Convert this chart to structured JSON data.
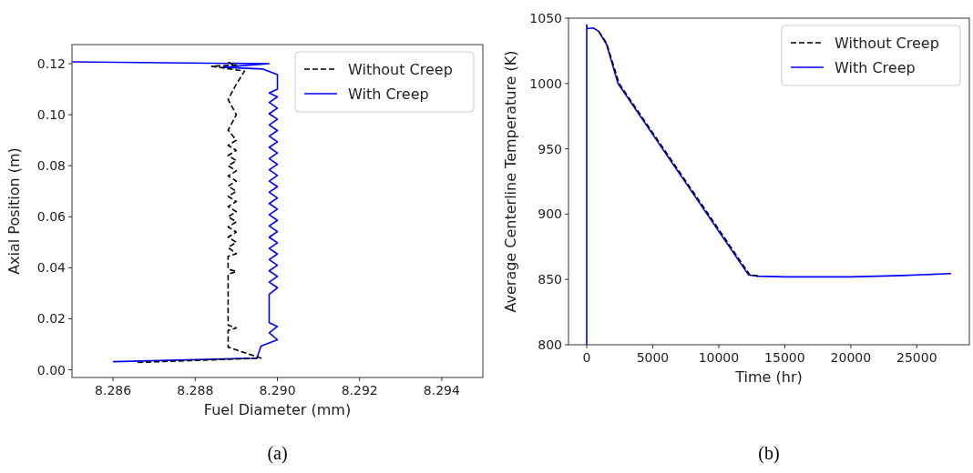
{
  "chart_data": [
    {
      "type": "line",
      "xlabel": "Fuel Diameter (mm)",
      "ylabel": "Axial Position (m)",
      "annotations": [
        "(a)"
      ],
      "xlim": [
        8.285,
        8.295
      ],
      "xticks": [
        {
          "value": 8.286,
          "label": "8.286"
        },
        {
          "value": 8.288,
          "label": "8.288"
        },
        {
          "value": 8.29,
          "label": "8.290"
        },
        {
          "value": 8.292,
          "label": "8.292"
        },
        {
          "value": 8.294,
          "label": "8.294"
        }
      ],
      "ylim": [
        -0.003,
        0.1275
      ],
      "yticks": [
        {
          "value": 0,
          "label": "0.00"
        },
        {
          "value": 0.02,
          "label": "0.02"
        },
        {
          "value": 0.04,
          "label": "0.04"
        },
        {
          "value": 0.06,
          "label": "0.06"
        },
        {
          "value": 0.08,
          "label": "0.08"
        },
        {
          "value": 0.1,
          "label": "0.10"
        },
        {
          "value": 0.12,
          "label": "0.12"
        }
      ],
      "grid": false,
      "legend": "top right",
      "series": [
        {
          "name": "Without Creep",
          "color": "#000000",
          "line_style": "dashed",
          "x": [
            8.2866,
            8.2896,
            8.2888,
            8.2888,
            8.289,
            8.2888,
            8.2888,
            8.289,
            8.2888,
            8.2888,
            8.289,
            8.2888,
            8.289,
            8.2888,
            8.289,
            8.2888,
            8.289,
            8.2888,
            8.289,
            8.2888,
            8.289,
            8.2888,
            8.289,
            8.2888,
            8.289,
            8.2888,
            8.289,
            8.2888,
            8.289,
            8.2888,
            8.289,
            8.2888,
            8.289,
            8.2888,
            8.289,
            8.2888,
            8.289,
            8.2892,
            8.2884,
            8.289,
            8.2888
          ],
          "values": [
            0.0029,
            0.0046,
            0.0089,
            0.0155,
            0.0164,
            0.0175,
            0.0375,
            0.0385,
            0.0395,
            0.0445,
            0.0455,
            0.048,
            0.05,
            0.052,
            0.054,
            0.056,
            0.058,
            0.06,
            0.062,
            0.064,
            0.066,
            0.068,
            0.07,
            0.072,
            0.074,
            0.076,
            0.078,
            0.08,
            0.082,
            0.084,
            0.086,
            0.088,
            0.09,
            0.094,
            0.1,
            0.106,
            0.112,
            0.1171,
            0.119,
            0.1195,
            0.1205
          ]
        },
        {
          "name": "With Creep",
          "color": "#0000ff",
          "line_style": "solid",
          "x": [
            8.286,
            8.2895,
            8.2896,
            8.29,
            8.2898,
            8.29,
            8.2898,
            8.2898,
            8.29,
            8.2898,
            8.29,
            8.2898,
            8.29,
            8.2898,
            8.29,
            8.2898,
            8.29,
            8.2898,
            8.29,
            8.2898,
            8.29,
            8.2898,
            8.29,
            8.2898,
            8.29,
            8.2898,
            8.29,
            8.2898,
            8.29,
            8.2898,
            8.29,
            8.2898,
            8.29,
            8.2898,
            8.29,
            8.2898,
            8.29,
            8.2898,
            8.29,
            8.2898,
            8.29,
            8.2898,
            8.29,
            8.2898,
            8.29,
            8.29,
            8.28965,
            8.28865,
            8.2898,
            8.285
          ],
          "values": [
            0.0032,
            0.0046,
            0.0093,
            0.0118,
            0.0145,
            0.017,
            0.0185,
            0.0296,
            0.0322,
            0.0344,
            0.0366,
            0.0388,
            0.041,
            0.0432,
            0.0454,
            0.0476,
            0.0498,
            0.052,
            0.0542,
            0.0564,
            0.0586,
            0.0608,
            0.063,
            0.0652,
            0.0674,
            0.0696,
            0.0718,
            0.074,
            0.0762,
            0.0784,
            0.0806,
            0.0828,
            0.085,
            0.0872,
            0.0894,
            0.0916,
            0.0938,
            0.096,
            0.0982,
            0.1004,
            0.1026,
            0.1048,
            0.107,
            0.1085,
            0.11,
            0.1157,
            0.1179,
            0.1186,
            0.12,
            0.1207
          ]
        }
      ]
    },
    {
      "type": "line",
      "xlabel": "Time (hr)",
      "ylabel": "Average Centerline Temperature (K)",
      "annotations": [
        "(b)"
      ],
      "xlim": [
        -1380,
        28980
      ],
      "xticks": [
        0,
        5000,
        10000,
        15000,
        20000,
        25000
      ],
      "ylim": [
        800,
        1050
      ],
      "yticks": [
        800,
        850,
        900,
        950,
        1000,
        1050
      ],
      "grid": false,
      "legend": "top right",
      "series": [
        {
          "name": "Without Creep",
          "color": "#000000",
          "line_style": "dashed",
          "x": [
            900,
            1500,
            2450,
            12350,
            13000
          ],
          "values": [
            1040,
            1031,
            1000,
            853.5,
            852.5
          ]
        },
        {
          "name": "With Creep",
          "color": "#0000ff",
          "line_style": "solid",
          "x": [
            0,
            0,
            30,
            500,
            900,
            1500,
            2370,
            12250,
            13000,
            15000,
            20000,
            24000,
            27600
          ],
          "values": [
            800,
            1045,
            1042,
            1042.5,
            1040,
            1030,
            1000,
            853.5,
            852.5,
            852,
            852,
            853,
            854.5
          ]
        }
      ]
    }
  ]
}
